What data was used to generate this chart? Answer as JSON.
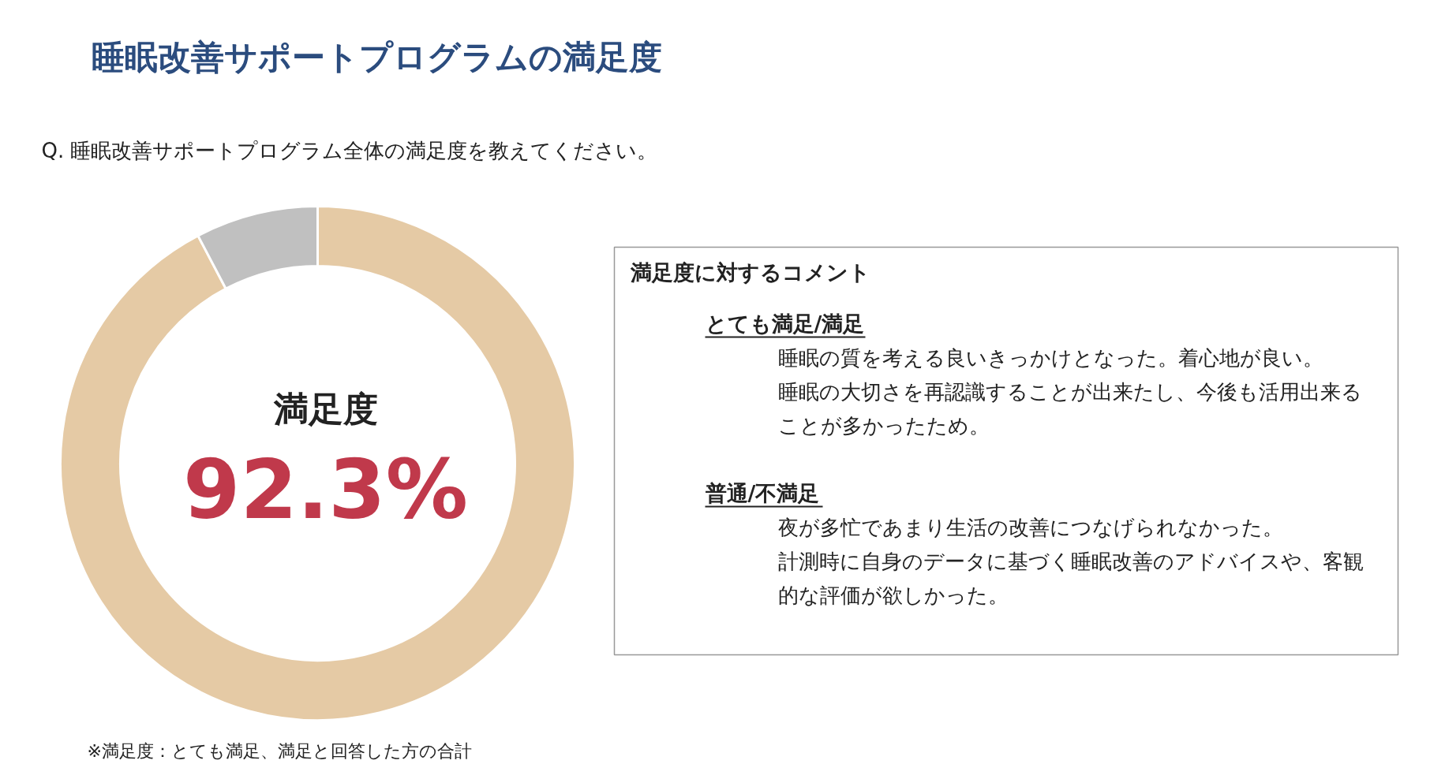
{
  "chart_data": [
    {
      "type": "donut",
      "title": "睡眠改善サポートプログラムの満足度",
      "subtitle": "Q. 睡眠改善サポートプログラム全体の満足度を教えてください。",
      "categories": [
        null,
        null
      ],
      "values": [
        92.3,
        7.7
      ],
      "colors": [
        "#e5caa5",
        "#c0c0c0"
      ],
      "annotations": [
        "満足度",
        "92.3%",
        "※満足度：とても満足、満足と回答した方の合計"
      ]
    },
    {
      "type": "other",
      "title": "満足度に対するコメント",
      "annotations": [
        "とても満足/満足",
        "睡眠の質を考える良いきっかけとなった。着心地が良い。",
        "睡眠の大切さを再認識することが出来たし、今後も活用出来ることが多かったため。",
        "普通/不満足",
        "夜が多忙であまり生活の改善につなげられなかった。",
        "計測時に自身のデータに基づく睡眠改善のアドバイスや、客観的な評価が欲しかった。"
      ]
    }
  ]
}
